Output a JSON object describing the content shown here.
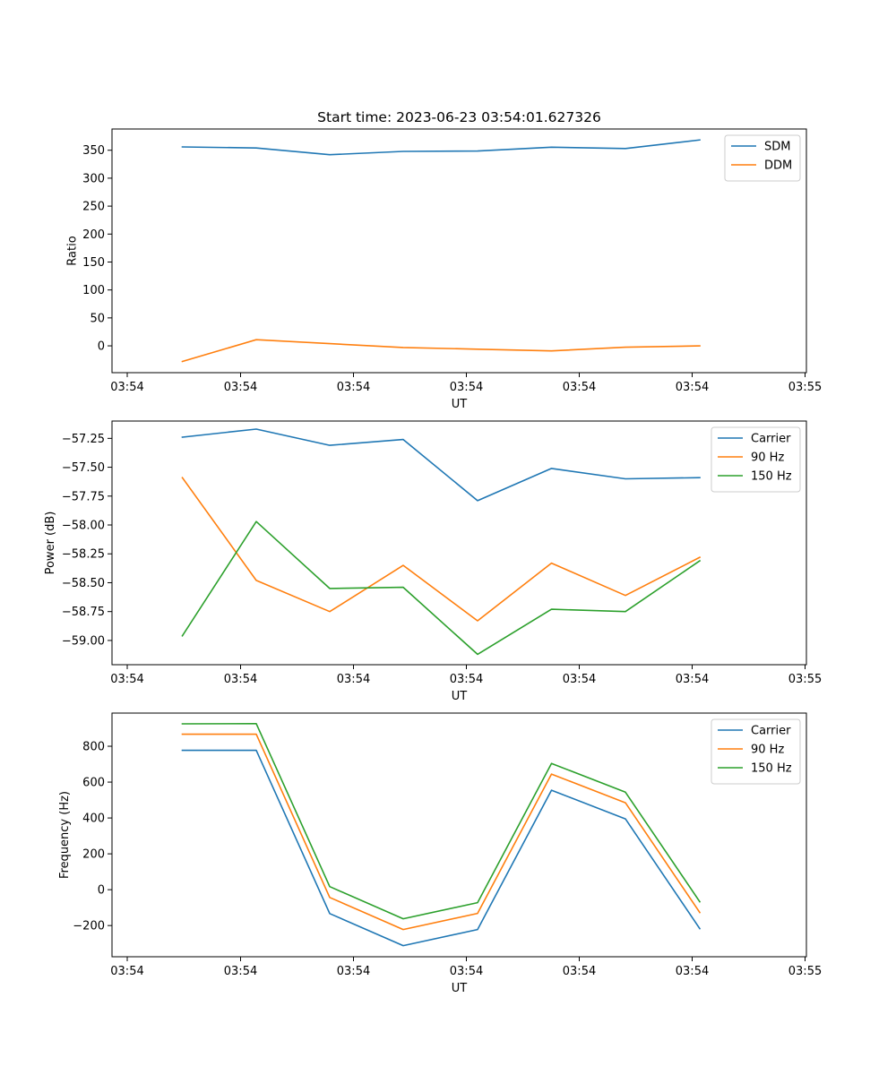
{
  "colors": {
    "blue": "#1f77b4",
    "orange": "#ff7f0e",
    "green": "#2ca02c"
  },
  "chart_data": [
    {
      "type": "line",
      "title": "Start time: 2023-06-23 03:54:01.627326",
      "xlabel": "UT",
      "ylabel": "Ratio",
      "x_tick_labels": [
        "03:54",
        "03:54",
        "03:54",
        "03:54",
        "03:54",
        "03:54",
        "03:54",
        "03:55"
      ],
      "yticks": [
        0,
        50,
        100,
        150,
        200,
        250,
        300,
        350
      ],
      "ylim": [
        -48,
        388
      ],
      "legend_position": "top-right",
      "series": [
        {
          "name": "SDM",
          "color": "#1f77b4",
          "values": [
            356,
            354,
            342,
            348,
            348.5,
            355.5,
            353,
            368.5
          ]
        },
        {
          "name": "DDM",
          "color": "#ff7f0e",
          "values": [
            -28,
            11,
            4,
            -3,
            -6,
            -9,
            -2.5,
            0
          ]
        }
      ]
    },
    {
      "type": "line",
      "title": "",
      "xlabel": "UT",
      "ylabel": "Power (dB)",
      "x_tick_labels": [
        "03:54",
        "03:54",
        "03:54",
        "03:54",
        "03:54",
        "03:54",
        "03:54",
        "03:55"
      ],
      "yticks": [
        -59.0,
        -58.75,
        -58.5,
        -58.25,
        -58.0,
        -57.75,
        -57.5,
        -57.25
      ],
      "ytick_labels": [
        "−59.00",
        "−58.75",
        "−58.50",
        "−58.25",
        "−58.00",
        "−57.75",
        "−57.50",
        "−57.25"
      ],
      "ylim": [
        -59.21,
        -57.1
      ],
      "legend_position": "top-right",
      "series": [
        {
          "name": "Carrier",
          "color": "#1f77b4",
          "values": [
            -57.24,
            -57.17,
            -57.31,
            -57.26,
            -57.79,
            -57.51,
            -57.6,
            -57.59
          ]
        },
        {
          "name": "90 Hz",
          "color": "#ff7f0e",
          "values": [
            -57.59,
            -58.48,
            -58.75,
            -58.35,
            -58.83,
            -58.33,
            -58.61,
            -58.28
          ]
        },
        {
          "name": "150 Hz",
          "color": "#2ca02c",
          "values": [
            -58.96,
            -57.97,
            -58.55,
            -58.54,
            -59.12,
            -58.73,
            -58.75,
            -58.31
          ]
        }
      ]
    },
    {
      "type": "line",
      "title": "",
      "xlabel": "UT",
      "ylabel": "Frequency (Hz)",
      "x_tick_labels": [
        "03:54",
        "03:54",
        "03:54",
        "03:54",
        "03:54",
        "03:54",
        "03:54",
        "03:55"
      ],
      "yticks": [
        -200,
        0,
        200,
        400,
        600,
        800
      ],
      "ytick_labels": [
        "−200",
        "0",
        "200",
        "400",
        "600",
        "800"
      ],
      "ylim": [
        -374,
        985
      ],
      "legend_position": "top-right",
      "series": [
        {
          "name": "Carrier",
          "color": "#1f77b4",
          "values": [
            777,
            777,
            -133,
            -312,
            -222,
            555,
            395,
            -217
          ]
        },
        {
          "name": "90 Hz",
          "color": "#ff7f0e",
          "values": [
            867,
            867,
            -43,
            -222,
            -132,
            645,
            485,
            -127
          ]
        },
        {
          "name": "150 Hz",
          "color": "#2ca02c",
          "values": [
            925,
            926,
            17,
            -162,
            -72,
            704,
            544,
            -67
          ]
        }
      ]
    }
  ]
}
